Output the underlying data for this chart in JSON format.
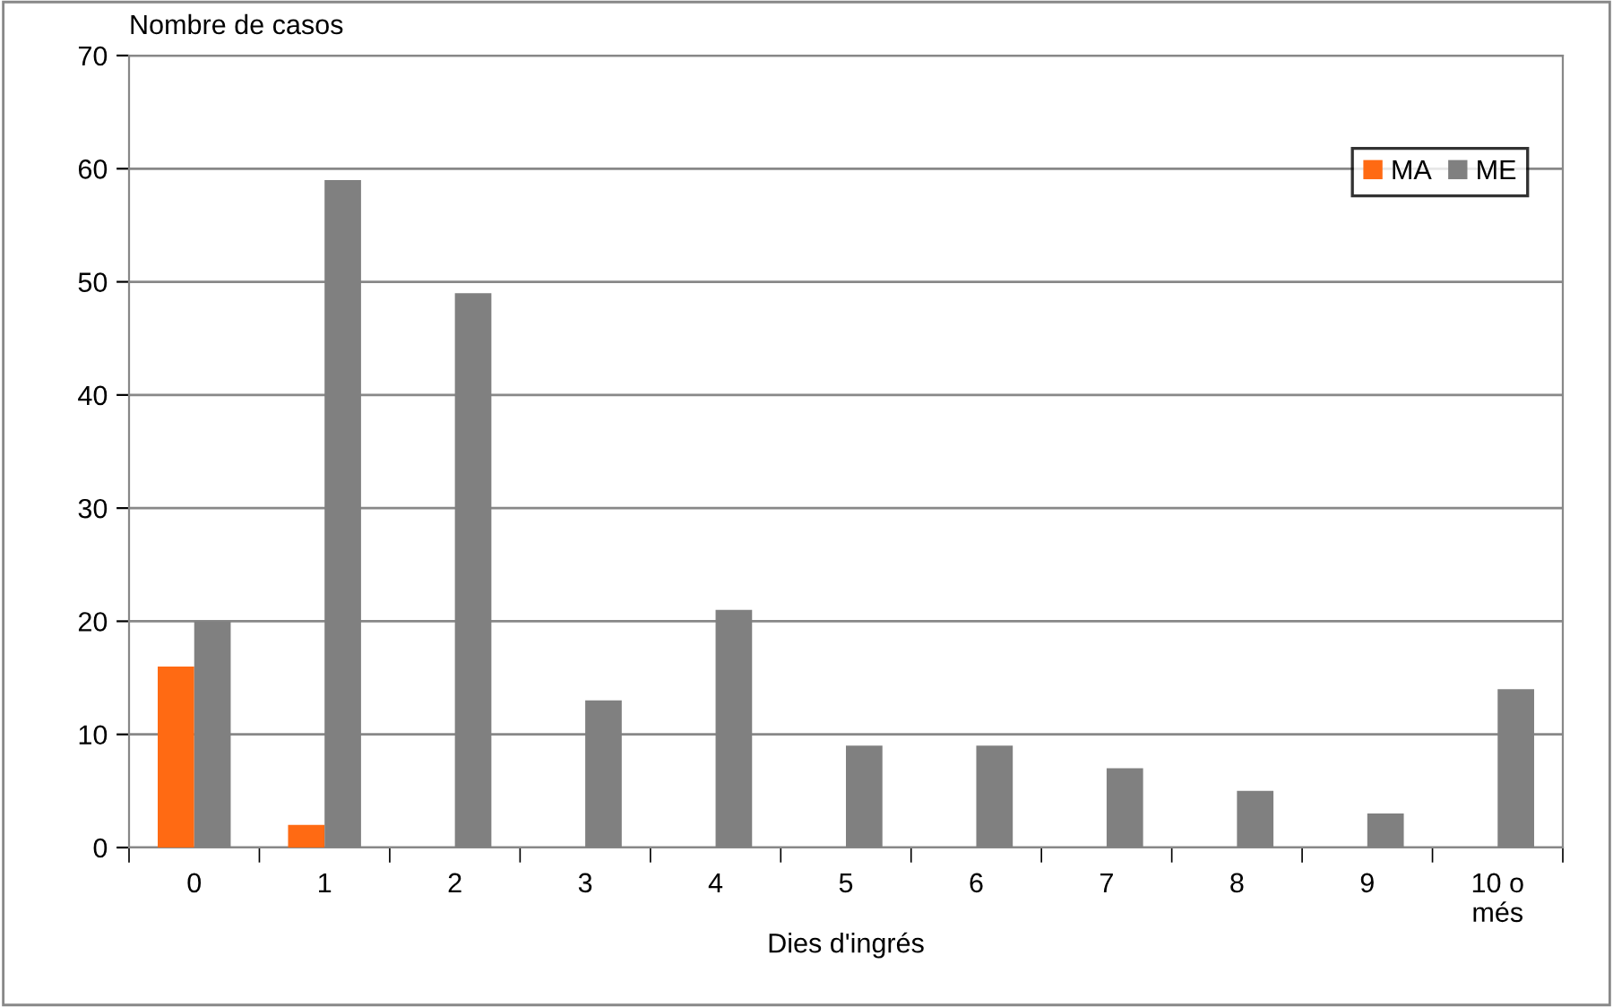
{
  "chart_data": {
    "type": "bar",
    "ylabel": "Nombre de casos",
    "xlabel": "Dies d'ingrés",
    "categories": [
      "0",
      "1",
      "2",
      "3",
      "4",
      "5",
      "6",
      "7",
      "8",
      "9",
      "10 o\nmés"
    ],
    "series": [
      {
        "name": "MA",
        "color": "#ff6a13",
        "values": [
          16,
          2,
          0,
          0,
          0,
          0,
          0,
          0,
          0,
          0,
          0
        ]
      },
      {
        "name": "ME",
        "color": "#808080",
        "values": [
          20,
          59,
          49,
          13,
          21,
          9,
          9,
          7,
          5,
          3,
          14
        ]
      }
    ],
    "ylim": [
      0,
      70
    ],
    "yticks": [
      0,
      10,
      20,
      30,
      40,
      50,
      60,
      70
    ],
    "grid": "y",
    "legend": "top right"
  }
}
